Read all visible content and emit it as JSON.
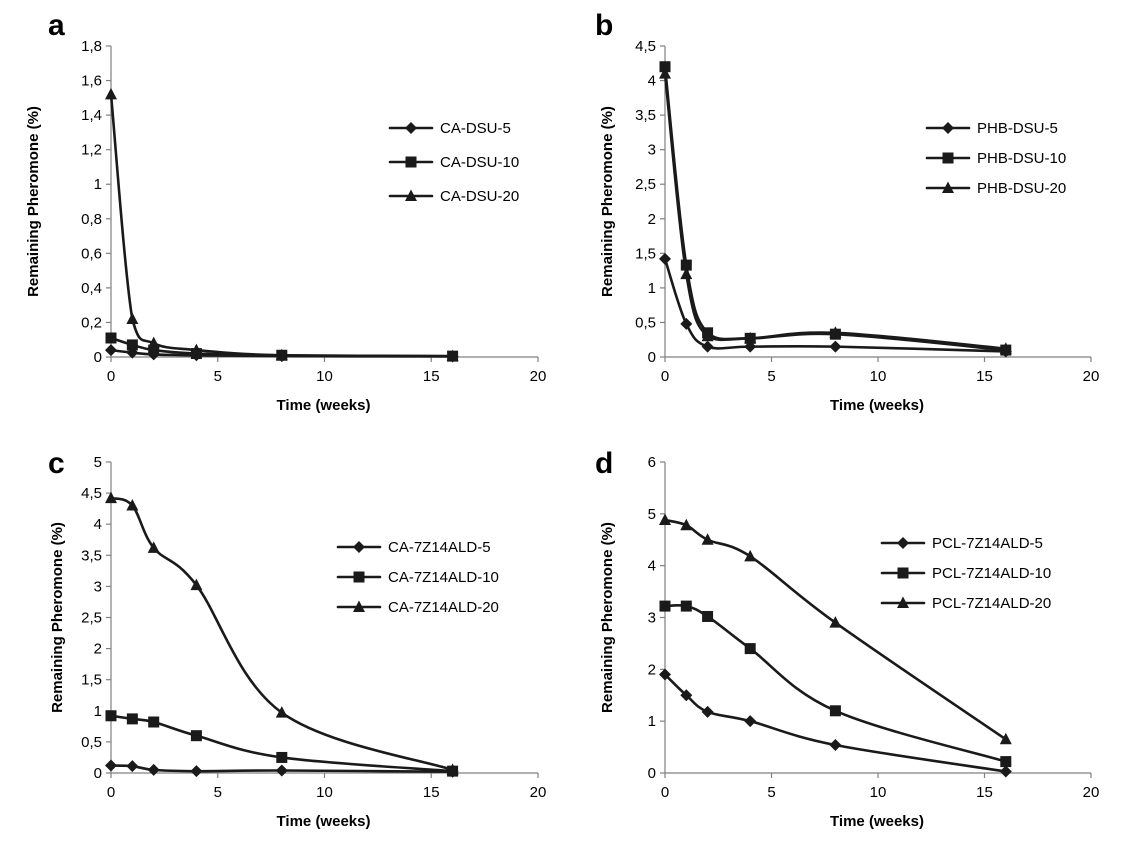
{
  "chart_data": [
    {
      "panel": "a",
      "type": "line",
      "xlabel": "Time (weeks)",
      "ylabel": "Remaining Pheromone (%)",
      "xlim": [
        0,
        20
      ],
      "ylim": [
        0,
        1.8
      ],
      "xticks": [
        "0",
        "5",
        "10",
        "15",
        "20"
      ],
      "yticks": [
        "0",
        "0,2",
        "0,4",
        "0,6",
        "0,8",
        "1",
        "1,2",
        "1,4",
        "1,6",
        "1,8"
      ],
      "legend_position": "right",
      "series": [
        {
          "name": "CA-DSU-5",
          "marker": "diamond",
          "x": [
            0,
            1,
            2,
            4,
            8,
            16
          ],
          "y": [
            0.04,
            0.025,
            0.015,
            0.01,
            0.005,
            0.003
          ]
        },
        {
          "name": "CA-DSU-10",
          "marker": "square",
          "x": [
            0,
            1,
            2,
            4,
            8,
            16
          ],
          "y": [
            0.11,
            0.07,
            0.04,
            0.02,
            0.01,
            0.005
          ]
        },
        {
          "name": "CA-DSU-20",
          "marker": "triangle",
          "x": [
            0,
            1,
            2,
            4,
            8,
            16
          ],
          "y": [
            1.52,
            0.22,
            0.08,
            0.04,
            0.01,
            0.005
          ]
        }
      ]
    },
    {
      "panel": "b",
      "type": "line",
      "xlabel": "Time (weeks)",
      "ylabel": "Remaining Pheromone (%)",
      "xlim": [
        0,
        20
      ],
      "ylim": [
        0,
        4.5
      ],
      "xticks": [
        "0",
        "5",
        "10",
        "15",
        "20"
      ],
      "yticks": [
        "0",
        "0,5",
        "1",
        "1,5",
        "2",
        "2,5",
        "3",
        "3,5",
        "4",
        "4,5"
      ],
      "legend_position": "right",
      "series": [
        {
          "name": "PHB-DSU-5",
          "marker": "diamond",
          "x": [
            0,
            1,
            2,
            4,
            8,
            16
          ],
          "y": [
            1.42,
            0.48,
            0.15,
            0.15,
            0.15,
            0.08
          ]
        },
        {
          "name": "PHB-DSU-10",
          "marker": "square",
          "x": [
            0,
            1,
            2,
            4,
            8,
            16
          ],
          "y": [
            4.2,
            1.33,
            0.35,
            0.27,
            0.33,
            0.1
          ]
        },
        {
          "name": "PHB-DSU-20",
          "marker": "triangle",
          "x": [
            0,
            1,
            2,
            4,
            8,
            16
          ],
          "y": [
            4.1,
            1.2,
            0.3,
            0.27,
            0.35,
            0.12
          ]
        }
      ]
    },
    {
      "panel": "c",
      "type": "line",
      "xlabel": "Time (weeks)",
      "ylabel": "Remaining Pheromone (%)",
      "xlim": [
        0,
        20
      ],
      "ylim": [
        0,
        5
      ],
      "xticks": [
        "0",
        "5",
        "10",
        "15",
        "20"
      ],
      "yticks": [
        "0",
        "0,5",
        "1",
        "1,5",
        "2",
        "2,5",
        "3",
        "3,5",
        "4",
        "4,5",
        "5"
      ],
      "legend_position": "right",
      "series": [
        {
          "name": "CA-7Z14ALD-5",
          "marker": "diamond",
          "x": [
            0,
            1,
            2,
            4,
            8,
            16
          ],
          "y": [
            0.12,
            0.11,
            0.05,
            0.03,
            0.04,
            0.02
          ]
        },
        {
          "name": "CA-7Z14ALD-10",
          "marker": "square",
          "x": [
            0,
            1,
            2,
            4,
            8,
            16
          ],
          "y": [
            0.92,
            0.87,
            0.82,
            0.6,
            0.25,
            0.03
          ]
        },
        {
          "name": "CA-7Z14ALD-20",
          "marker": "triangle",
          "x": [
            0,
            1,
            2,
            4,
            8,
            16
          ],
          "y": [
            4.42,
            4.3,
            3.62,
            3.02,
            0.97,
            0.05
          ]
        }
      ]
    },
    {
      "panel": "d",
      "type": "line",
      "xlabel": "Time (weeks)",
      "ylabel": "Remaining Pheromone (%)",
      "xlim": [
        0,
        20
      ],
      "ylim": [
        0,
        6
      ],
      "xticks": [
        "0",
        "5",
        "10",
        "15",
        "20"
      ],
      "yticks": [
        "0",
        "1",
        "2",
        "3",
        "4",
        "5",
        "6"
      ],
      "legend_position": "right",
      "series": [
        {
          "name": "PCL-7Z14ALD-5",
          "marker": "diamond",
          "x": [
            0,
            1,
            2,
            4,
            8,
            16
          ],
          "y": [
            1.9,
            1.5,
            1.18,
            1.0,
            0.54,
            0.03
          ]
        },
        {
          "name": "PCL-7Z14ALD-10",
          "marker": "square",
          "x": [
            0,
            1,
            2,
            4,
            8,
            16
          ],
          "y": [
            3.22,
            3.22,
            3.02,
            2.4,
            1.2,
            0.22
          ]
        },
        {
          "name": "PCL-7Z14ALD-20",
          "marker": "triangle",
          "x": [
            0,
            1,
            2,
            4,
            8,
            16
          ],
          "y": [
            4.88,
            4.78,
            4.5,
            4.18,
            2.9,
            0.65
          ]
        }
      ]
    }
  ]
}
